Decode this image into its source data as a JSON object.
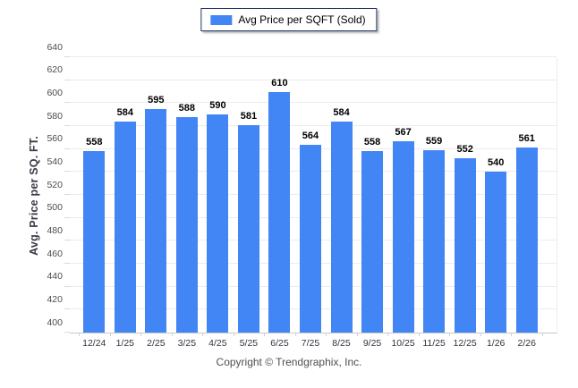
{
  "legend": {
    "label": "Avg Price per SQFT (Sold)",
    "swatch_color": "#4285f4"
  },
  "chart_data": {
    "type": "bar",
    "categories": [
      "12/24",
      "1/25",
      "2/25",
      "3/25",
      "4/25",
      "5/25",
      "6/25",
      "7/25",
      "8/25",
      "9/25",
      "10/25",
      "11/25",
      "12/25",
      "1/26",
      "2/26"
    ],
    "values": [
      558,
      584,
      595,
      588,
      590,
      581,
      610,
      564,
      584,
      558,
      567,
      559,
      552,
      540,
      561
    ],
    "series_name": "Avg Price per SQFT (Sold)",
    "title": "",
    "xlabel": "",
    "ylabel": "Avg. Price per SQ. FT.",
    "ylim": [
      400,
      640
    ],
    "ytick_step": 20,
    "bar_color": "#4285f4",
    "grid": true,
    "legend_position": "top-center",
    "value_labels": true
  },
  "footer": {
    "copyright": "Copyright © Trendgraphix, Inc."
  }
}
